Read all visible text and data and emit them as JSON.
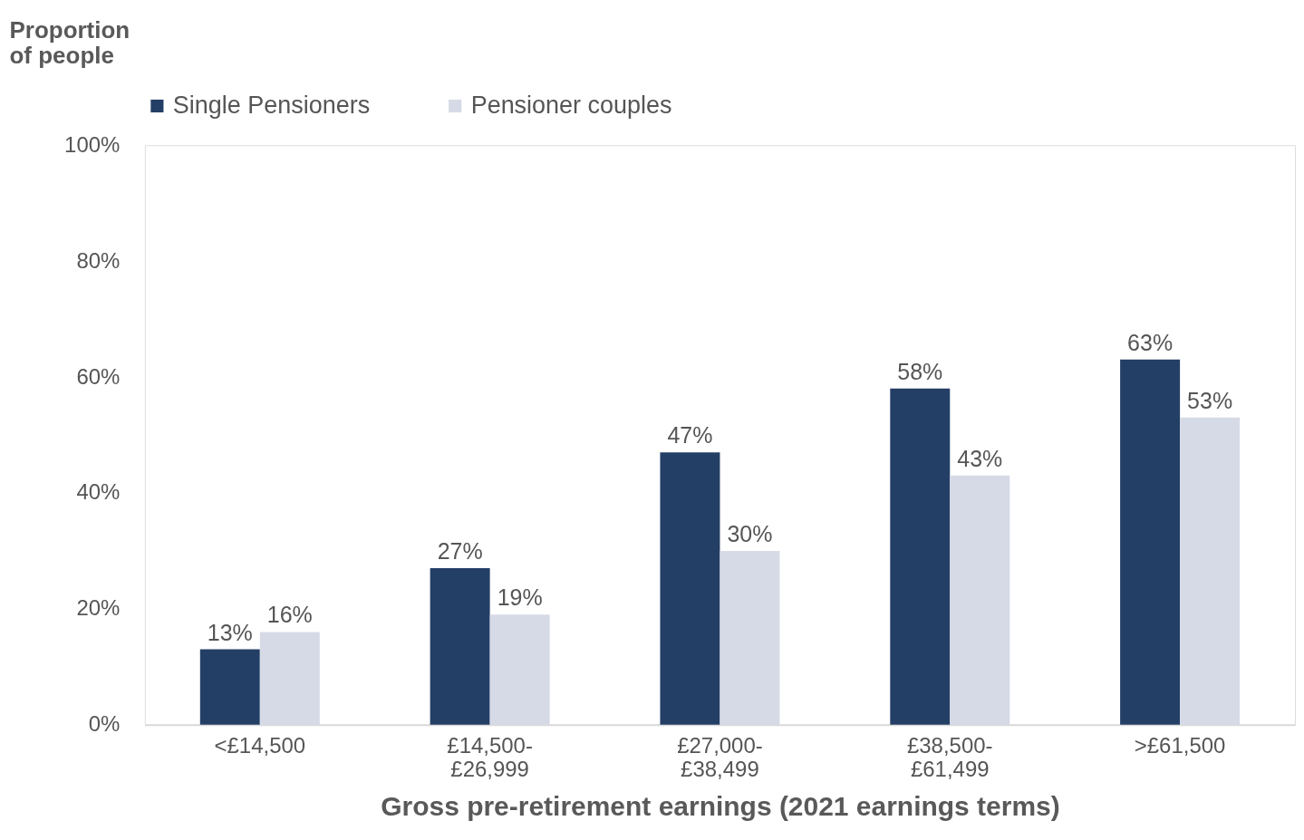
{
  "chart_data": {
    "type": "bar",
    "xlabel": "Gross pre-retirement earnings (2021 earnings terms)",
    "ylabel": "Proportion\nof people",
    "categories": [
      "<£14,500",
      "£14,500-\n£26,999",
      "£27,000-\n£38,499",
      "£38,500-\n£61,499",
      ">£61,500"
    ],
    "series": [
      {
        "name": "Single Pensioners",
        "color": "#243f66",
        "values": [
          13,
          27,
          47,
          58,
          63
        ],
        "value_labels": [
          "13%",
          "27%",
          "47%",
          "58%",
          "63%"
        ]
      },
      {
        "name": "Pensioner couples",
        "color": "#d5dae6",
        "values": [
          16,
          19,
          30,
          43,
          53
        ],
        "value_labels": [
          "16%",
          "19%",
          "30%",
          "43%",
          "53%"
        ]
      }
    ],
    "ylim": [
      0,
      100
    ],
    "yticks": [
      {
        "value": 0,
        "label": "0%"
      },
      {
        "value": 20,
        "label": "20%"
      },
      {
        "value": 40,
        "label": "40%"
      },
      {
        "value": 60,
        "label": "60%"
      },
      {
        "value": 80,
        "label": "80%"
      },
      {
        "value": 100,
        "label": "100%"
      }
    ],
    "legend": "top",
    "grid": false
  }
}
